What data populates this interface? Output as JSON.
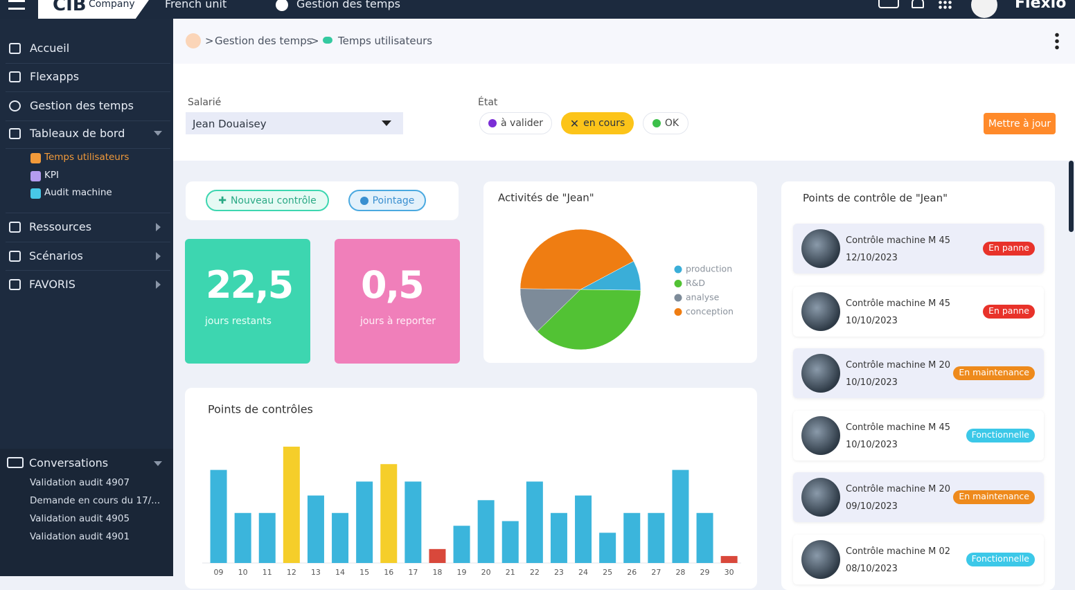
{
  "topbar": {
    "logo": "Company",
    "unit": "French unit",
    "module": "Gestion des temps",
    "brand": "Flexio"
  },
  "sidebar": {
    "menu_top": [
      "Accueil",
      "Flexapps",
      "Gestion des temps",
      "Tableaux de bord"
    ],
    "submenu": [
      "Temps utilisateurs",
      "KPI",
      "Audit machine"
    ],
    "menu_bottom": [
      "Ressources",
      "Scénarios",
      "FAVORIS"
    ],
    "conversations": {
      "title": "Conversations",
      "items": [
        "Validation audit 4907",
        "Demande en cours du 17/...",
        "Validation audit 4905",
        "Validation audit 4901"
      ]
    }
  },
  "breadcrumb": [
    "Gestion des temps",
    "Temps utilisateurs"
  ],
  "filters": {
    "employee_label": "Salarié",
    "employee": "Jean Douaisey",
    "state_label": "État",
    "states": [
      "à valider",
      "en cours",
      "OK"
    ],
    "update_button": "Mettre à jour"
  },
  "actions": [
    "Nouveau contrôle",
    "Pointage"
  ],
  "stats": [
    {
      "value": "22,5",
      "label": "jours restants"
    },
    {
      "value": "0,5",
      "label": "jours à reporter"
    }
  ],
  "chart_data": [
    {
      "type": "pie",
      "title": "Activités de \"Jean\"",
      "categories": [
        "production",
        "R&D",
        "analyse",
        "conception"
      ],
      "values": [
        8,
        37.5,
        12.5,
        42
      ],
      "colors": [
        "#3aaed8",
        "#52c234",
        "#7d8b99",
        "#ef7d12"
      ]
    },
    {
      "type": "bar",
      "title": "Points de contrôles",
      "categories": [
        "09",
        "10",
        "11",
        "12",
        "13",
        "14",
        "15",
        "16",
        "17",
        "18",
        "19",
        "20",
        "21",
        "22",
        "23",
        "24",
        "25",
        "26",
        "27",
        "28",
        "29",
        "30"
      ],
      "values": [
        8,
        4.3,
        4.3,
        10,
        5.8,
        4.3,
        7,
        8.5,
        7,
        1.2,
        3.2,
        5.4,
        3.6,
        7,
        4.3,
        5.8,
        2.6,
        4.3,
        4.3,
        8,
        4.3,
        0.6
      ],
      "colors": [
        "#3bb5dc",
        "#3bb5dc",
        "#3bb5dc",
        "#f5ce2a",
        "#3bb5dc",
        "#3bb5dc",
        "#3bb5dc",
        "#f5ce2a",
        "#3bb5dc",
        "#d9483b",
        "#3bb5dc",
        "#3bb5dc",
        "#3bb5dc",
        "#3bb5dc",
        "#3bb5dc",
        "#3bb5dc",
        "#3bb5dc",
        "#3bb5dc",
        "#3bb5dc",
        "#3bb5dc",
        "#3bb5dc",
        "#d9483b"
      ],
      "ylim": [
        0,
        10
      ]
    }
  ],
  "control_points": {
    "title": "Points de contrôle de \"Jean\"",
    "items": [
      {
        "title": "Contrôle machine M 45",
        "date": "12/10/2023",
        "status": "En panne",
        "status_color": "#e8322a"
      },
      {
        "title": "Contrôle machine M 45",
        "date": "10/10/2023",
        "status": "En panne",
        "status_color": "#e8322a"
      },
      {
        "title": "Contrôle machine M 20",
        "date": "10/10/2023",
        "status": "En maintenance",
        "status_color": "#ee8a1c"
      },
      {
        "title": "Contrôle machine M 45",
        "date": "10/10/2023",
        "status": "Fonctionnelle",
        "status_color": "#3cc8e8"
      },
      {
        "title": "Contrôle machine M 20",
        "date": "09/10/2023",
        "status": "En maintenance",
        "status_color": "#ee8a1c"
      },
      {
        "title": "Contrôle machine M 02",
        "date": "08/10/2023",
        "status": "Fonctionnelle",
        "status_color": "#3cc8e8"
      }
    ]
  }
}
